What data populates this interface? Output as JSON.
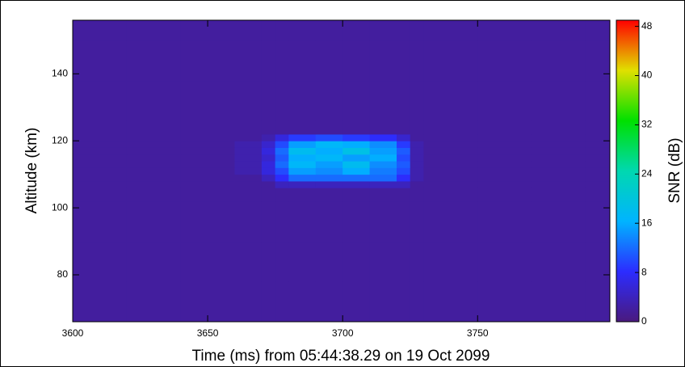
{
  "chart_data": {
    "type": "heatmap",
    "x_label": "Time (ms) from 05:44:38.29 on 19 Oct 2099",
    "y_label": "Altitude (km)",
    "colorbar_label": "SNR (dB)",
    "xlim": [
      3600,
      3799
    ],
    "ylim": [
      66,
      156
    ],
    "xticks": [
      3600,
      3650,
      3700,
      3750
    ],
    "yticks": [
      80,
      100,
      120,
      140
    ],
    "zlim": [
      0,
      49
    ],
    "zticks": [
      0,
      8,
      16,
      24,
      32,
      40,
      48
    ],
    "colormap": [
      "#4a1a7e",
      "#2c2cff",
      "#00b4ff",
      "#00d8b0",
      "#00e000",
      "#e0e000",
      "#ff0000"
    ],
    "x_bins": [
      3600,
      3620,
      3640,
      3660,
      3670,
      3675,
      3680,
      3690,
      3700,
      3710,
      3720,
      3725,
      3730,
      3750,
      3770,
      3790,
      3799
    ],
    "y_bins": [
      66,
      78,
      90,
      102,
      106,
      108,
      110,
      112,
      114,
      116,
      118,
      120,
      122,
      126,
      138,
      150,
      156
    ],
    "z": [
      [
        2,
        2,
        2,
        2,
        2,
        2,
        2,
        2,
        2,
        2,
        2,
        2,
        2,
        2,
        2,
        2
      ],
      [
        2,
        2,
        2,
        2,
        2,
        2,
        2,
        2,
        2,
        2,
        2,
        2,
        2,
        2,
        2,
        2
      ],
      [
        2,
        2,
        2,
        2,
        2,
        2,
        2,
        2,
        2,
        2,
        2,
        2,
        2,
        2,
        2,
        2
      ],
      [
        2,
        2,
        2,
        2,
        2,
        2,
        2,
        2,
        2,
        2,
        2,
        2,
        2,
        2,
        2,
        2
      ],
      [
        2,
        2,
        2,
        2,
        2,
        4,
        4,
        4,
        4,
        4,
        4,
        2,
        2,
        2,
        2,
        2
      ],
      [
        2,
        2,
        2,
        2,
        4,
        8,
        12,
        12,
        12,
        12,
        8,
        3,
        2,
        2,
        2,
        2
      ],
      [
        2,
        2,
        2,
        3,
        6,
        10,
        15,
        14,
        16,
        13,
        10,
        3,
        2,
        2,
        2,
        2
      ],
      [
        2,
        2,
        2,
        3,
        6,
        12,
        17,
        15,
        18,
        14,
        11,
        3,
        2,
        2,
        2,
        2
      ],
      [
        2,
        2,
        2,
        3,
        5,
        11,
        16,
        17,
        15,
        16,
        10,
        3,
        2,
        2,
        2,
        2
      ],
      [
        2,
        2,
        2,
        3,
        6,
        12,
        18,
        16,
        19,
        15,
        11,
        3,
        2,
        2,
        2,
        2
      ],
      [
        2,
        2,
        2,
        3,
        5,
        10,
        15,
        17,
        16,
        14,
        9,
        3,
        2,
        2,
        2,
        2
      ],
      [
        2,
        2,
        2,
        2,
        3,
        6,
        9,
        10,
        9,
        8,
        5,
        2,
        2,
        2,
        2,
        2
      ],
      [
        2,
        2,
        2,
        2,
        2,
        2,
        2,
        2,
        2,
        2,
        2,
        2,
        2,
        2,
        2,
        2
      ],
      [
        2,
        2,
        2,
        2,
        2,
        2,
        2,
        2,
        2,
        2,
        2,
        2,
        2,
        2,
        2,
        2
      ],
      [
        2,
        2,
        2,
        2,
        2,
        2,
        2,
        2,
        2,
        2,
        2,
        2,
        2,
        2,
        2,
        2
      ],
      [
        2,
        2,
        2,
        2,
        2,
        2,
        2,
        2,
        2,
        2,
        2,
        2,
        2,
        2,
        2,
        2
      ]
    ]
  }
}
